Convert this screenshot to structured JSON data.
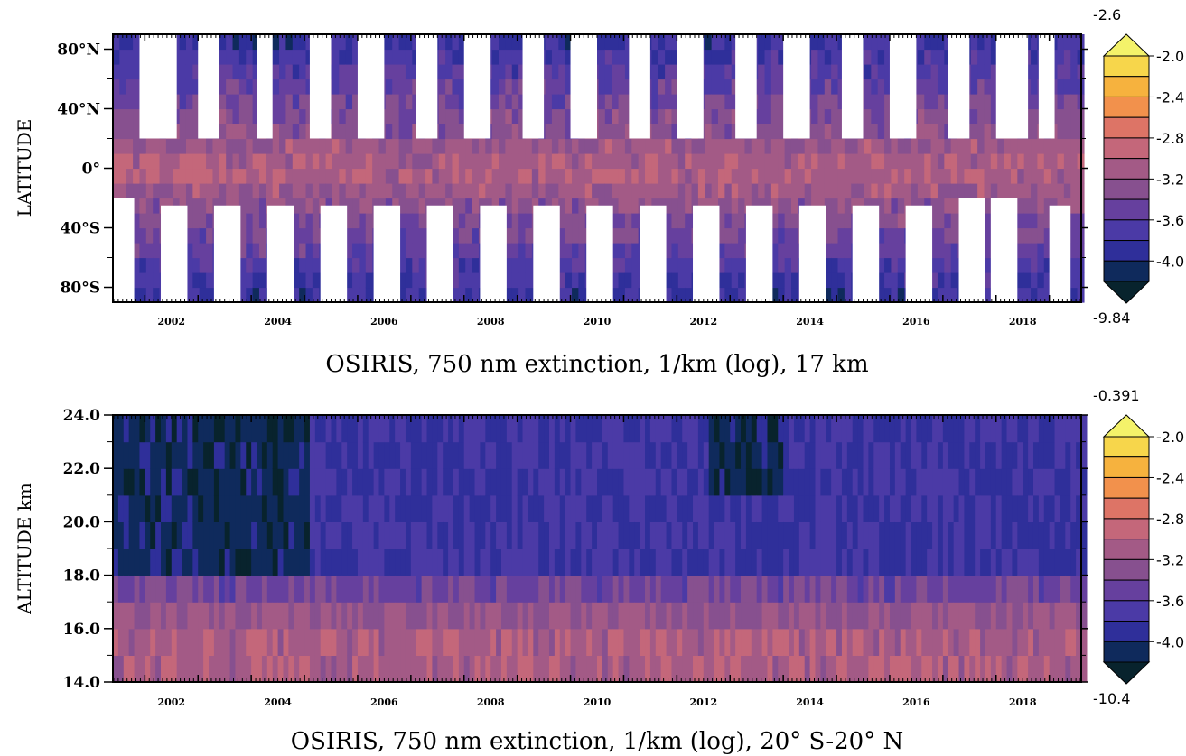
{
  "colorscale": {
    "bounds": [
      -4.0,
      -3.8,
      -3.6,
      -3.4,
      -3.2,
      -3.0,
      -2.8,
      -2.6,
      -2.4,
      -2.2,
      -2.0
    ],
    "colors": [
      "#0f2a5c",
      "#2f2f9a",
      "#4b3aa6",
      "#66409e",
      "#87508f",
      "#a35a86",
      "#c4677a",
      "#dd7466",
      "#f2914c",
      "#f6b23e",
      "#f7d64b"
    ],
    "under_color": "#08232d",
    "over_color": "#f4f26a",
    "missing_color": "#ffffff"
  },
  "chart_data": [
    {
      "type": "heatmap",
      "caption": "OSIRIS, 750 nm extinction, 1/km (log), 17 km",
      "ylabel": "LATITUDE",
      "xlim": [
        2001.4,
        2019.6
      ],
      "x_ticks": [
        "2002",
        "2004",
        "2006",
        "2008",
        "2010",
        "2012",
        "2014",
        "2016",
        "2018"
      ],
      "ylim": [
        -90,
        90
      ],
      "y_ticks": [
        {
          "value": 80,
          "label": "80°N"
        },
        {
          "value": 40,
          "label": "40°N"
        },
        {
          "value": 0,
          "label": "0°"
        },
        {
          "value": -40,
          "label": "40°S"
        },
        {
          "value": -80,
          "label": "80°S"
        }
      ],
      "colorbar": {
        "max_label": "-2.6",
        "min_label": "-9.84",
        "labels": [
          "-2.0",
          "-2.4",
          "-2.8",
          "-3.2",
          "-3.6",
          "-4.0"
        ]
      },
      "series_grid": {
        "x_step_years": 0.125,
        "y_bins": [
          -85,
          -75,
          -65,
          -55,
          -45,
          -35,
          -25,
          -15,
          -5,
          5,
          15,
          25,
          35,
          45,
          55,
          65,
          75,
          85
        ],
        "description_values": "log10 extinction values approximated: about -2.8 near the equator, decreasing to about -3.7 toward the poles, with white gaps where no data exist"
      },
      "missing_regions": [
        {
          "x0": 2001.9,
          "x1": 2002.6,
          "y0": 20,
          "y1": 90
        },
        {
          "x0": 2003.0,
          "x1": 2003.4,
          "y0": 20,
          "y1": 90
        },
        {
          "x0": 2004.1,
          "x1": 2004.4,
          "y0": 20,
          "y1": 90
        },
        {
          "x0": 2005.1,
          "x1": 2005.5,
          "y0": 20,
          "y1": 90
        },
        {
          "x0": 2006.0,
          "x1": 2006.5,
          "y0": 20,
          "y1": 90
        },
        {
          "x0": 2007.1,
          "x1": 2007.5,
          "y0": 20,
          "y1": 90
        },
        {
          "x0": 2008.0,
          "x1": 2008.5,
          "y0": 20,
          "y1": 90
        },
        {
          "x0": 2009.1,
          "x1": 2009.5,
          "y0": 20,
          "y1": 90
        },
        {
          "x0": 2010.0,
          "x1": 2010.5,
          "y0": 20,
          "y1": 90
        },
        {
          "x0": 2011.1,
          "x1": 2011.5,
          "y0": 20,
          "y1": 90
        },
        {
          "x0": 2012.0,
          "x1": 2012.5,
          "y0": 20,
          "y1": 90
        },
        {
          "x0": 2013.1,
          "x1": 2013.5,
          "y0": 20,
          "y1": 90
        },
        {
          "x0": 2014.0,
          "x1": 2014.5,
          "y0": 20,
          "y1": 90
        },
        {
          "x0": 2015.1,
          "x1": 2015.5,
          "y0": 20,
          "y1": 90
        },
        {
          "x0": 2016.0,
          "x1": 2016.5,
          "y0": 20,
          "y1": 90
        },
        {
          "x0": 2017.1,
          "x1": 2017.5,
          "y0": 20,
          "y1": 90
        },
        {
          "x0": 2018.0,
          "x1": 2018.6,
          "y0": 20,
          "y1": 90
        },
        {
          "x0": 2018.8,
          "x1": 2019.1,
          "y0": 20,
          "y1": 90
        },
        {
          "x0": 2001.4,
          "x1": 2001.8,
          "y0": -90,
          "y1": -20
        },
        {
          "x0": 2002.3,
          "x1": 2002.8,
          "y0": -90,
          "y1": -25
        },
        {
          "x0": 2003.3,
          "x1": 2003.8,
          "y0": -90,
          "y1": -25
        },
        {
          "x0": 2004.3,
          "x1": 2004.8,
          "y0": -90,
          "y1": -25
        },
        {
          "x0": 2005.3,
          "x1": 2005.8,
          "y0": -90,
          "y1": -25
        },
        {
          "x0": 2006.3,
          "x1": 2006.8,
          "y0": -90,
          "y1": -25
        },
        {
          "x0": 2007.3,
          "x1": 2007.8,
          "y0": -90,
          "y1": -25
        },
        {
          "x0": 2008.3,
          "x1": 2008.8,
          "y0": -90,
          "y1": -25
        },
        {
          "x0": 2009.3,
          "x1": 2009.8,
          "y0": -90,
          "y1": -25
        },
        {
          "x0": 2010.3,
          "x1": 2010.8,
          "y0": -90,
          "y1": -25
        },
        {
          "x0": 2011.3,
          "x1": 2011.8,
          "y0": -90,
          "y1": -25
        },
        {
          "x0": 2012.3,
          "x1": 2012.8,
          "y0": -90,
          "y1": -25
        },
        {
          "x0": 2013.3,
          "x1": 2013.8,
          "y0": -90,
          "y1": -25
        },
        {
          "x0": 2014.3,
          "x1": 2014.8,
          "y0": -90,
          "y1": -25
        },
        {
          "x0": 2015.3,
          "x1": 2015.8,
          "y0": -90,
          "y1": -25
        },
        {
          "x0": 2016.3,
          "x1": 2016.8,
          "y0": -90,
          "y1": -25
        },
        {
          "x0": 2017.3,
          "x1": 2017.8,
          "y0": -90,
          "y1": -20
        },
        {
          "x0": 2017.9,
          "x1": 2018.4,
          "y0": -90,
          "y1": -20
        },
        {
          "x0": 2019.0,
          "x1": 2019.4,
          "y0": -90,
          "y1": -25
        }
      ]
    },
    {
      "type": "heatmap",
      "caption": "OSIRIS, 750 nm extinction, 1/km (log), 20° S-20° N",
      "ylabel": "ALTITUDE  km",
      "xlim": [
        2001.4,
        2019.6
      ],
      "x_ticks": [
        "2002",
        "2004",
        "2006",
        "2008",
        "2010",
        "2012",
        "2014",
        "2016",
        "2018"
      ],
      "ylim": [
        14.0,
        24.0
      ],
      "y_ticks": [
        {
          "value": 24.0,
          "label": "24.0"
        },
        {
          "value": 22.0,
          "label": "22.0"
        },
        {
          "value": 20.0,
          "label": "20.0"
        },
        {
          "value": 18.0,
          "label": "18.0"
        },
        {
          "value": 16.0,
          "label": "16.0"
        },
        {
          "value": 14.0,
          "label": "14.0"
        }
      ],
      "colorbar": {
        "max_label": "-0.391",
        "min_label": "-10.4",
        "labels": [
          "-2.0",
          "-2.4",
          "-2.8",
          "-3.2",
          "-3.6",
          "-4.0"
        ]
      },
      "y_bins": [
        14.5,
        15.5,
        16.5,
        17.5,
        18.5,
        19.5,
        20.5,
        21.5,
        22.5,
        23.5
      ],
      "description_values": "log10 extinction approximated: about -2.8 at 14–16 km, about -3.2 at 17 km, about -3.6 at 18–22 km, and about -4.0 at upper levels during 2001–2005"
    }
  ]
}
